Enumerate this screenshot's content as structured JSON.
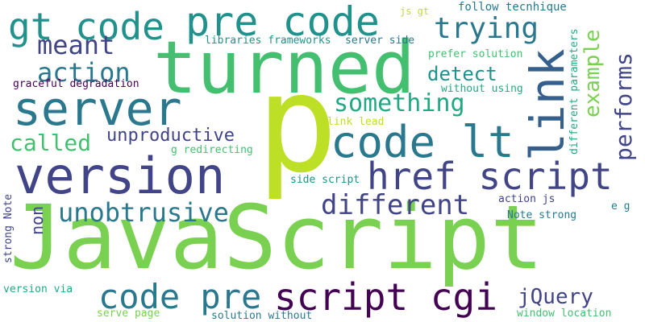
{
  "palette": {
    "dark_purple": "#440154",
    "indigo": "#414487",
    "blue": "#355f8d",
    "steel": "#2a788e",
    "teal": "#21918c",
    "sea": "#22a884",
    "green": "#44bf70",
    "lime_green": "#7ad151",
    "lime": "#bddf26"
  },
  "words": [
    {
      "text": "JavaScript",
      "color": "#7ad151"
    },
    {
      "text": "p",
      "color": "#bddf26"
    },
    {
      "text": "turned",
      "color": "#44bf70"
    },
    {
      "text": "version",
      "color": "#414487"
    },
    {
      "text": "server",
      "color": "#2a788e"
    },
    {
      "text": "pre code",
      "color": "#21918c"
    },
    {
      "text": "gt code",
      "color": "#21918c"
    },
    {
      "text": "link",
      "color": "#355f8d"
    },
    {
      "text": "code lt",
      "color": "#2a788e"
    },
    {
      "text": "href script",
      "color": "#414487"
    },
    {
      "text": "script cgi",
      "color": "#440154"
    },
    {
      "text": "code pre",
      "color": "#2a788e"
    },
    {
      "text": "trying",
      "color": "#2a788e"
    },
    {
      "text": "meant",
      "color": "#414487"
    },
    {
      "text": "action",
      "color": "#2a788e"
    },
    {
      "text": "something",
      "color": "#22a884"
    },
    {
      "text": "different",
      "color": "#414487"
    },
    {
      "text": "unobtrusive",
      "color": "#2a788e"
    },
    {
      "text": "called",
      "color": "#44bf70"
    },
    {
      "text": "unproductive",
      "color": "#414487"
    },
    {
      "text": "detect",
      "color": "#21918c"
    },
    {
      "text": "example",
      "color": "#7ad151"
    },
    {
      "text": "performs",
      "color": "#414487"
    },
    {
      "text": "jQuery",
      "color": "#414487"
    },
    {
      "text": "non",
      "color": "#414487"
    },
    {
      "text": "follow tecnhique",
      "color": "#2a788e"
    },
    {
      "text": "js gt",
      "color": "#bddf26"
    },
    {
      "text": "libraries frameworks",
      "color": "#21918c"
    },
    {
      "text": "server side",
      "color": "#2a788e"
    },
    {
      "text": "prefer solution",
      "color": "#44bf70"
    },
    {
      "text": "without using",
      "color": "#22a884"
    },
    {
      "text": "graceful degradation",
      "color": "#440154"
    },
    {
      "text": "link lead",
      "color": "#bddf26"
    },
    {
      "text": "g redirecting",
      "color": "#44bf70"
    },
    {
      "text": "different parameters",
      "color": "#22a884"
    },
    {
      "text": "side script",
      "color": "#21918c"
    },
    {
      "text": "action js",
      "color": "#414487"
    },
    {
      "text": "e g",
      "color": "#2a788e"
    },
    {
      "text": "Note strong",
      "color": "#2a788e"
    },
    {
      "text": "strong Note",
      "color": "#414487"
    },
    {
      "text": "version via",
      "color": "#22a884"
    },
    {
      "text": "serve page",
      "color": "#7ad151"
    },
    {
      "text": "solution without",
      "color": "#2a788e"
    },
    {
      "text": "window location",
      "color": "#44bf70"
    }
  ]
}
